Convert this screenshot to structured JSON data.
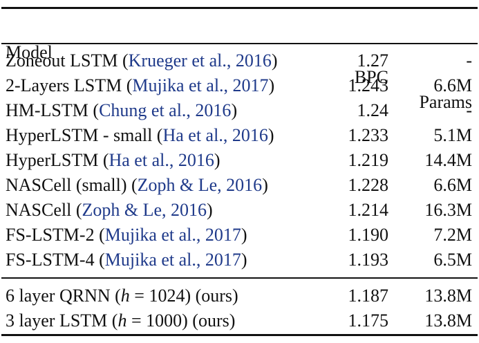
{
  "table": {
    "header": [
      "Model",
      "BPC",
      "Params"
    ],
    "groups": [
      [
        {
          "model": [
            {
              "text": "Zoneout LSTM ("
            },
            {
              "text": "Krueger et al., 2016",
              "style": "cite"
            },
            {
              "text": ")"
            }
          ],
          "bpc": "1.27",
          "params": "-"
        },
        {
          "model": [
            {
              "text": "2-Layers LSTM ("
            },
            {
              "text": "Mujika et al., 2017",
              "style": "cite"
            },
            {
              "text": ")"
            }
          ],
          "bpc": "1.243",
          "params": "6.6M"
        },
        {
          "model": [
            {
              "text": "HM-LSTM ("
            },
            {
              "text": "Chung et al., 2016",
              "style": "cite"
            },
            {
              "text": ")"
            }
          ],
          "bpc": "1.24",
          "params": "-"
        },
        {
          "model": [
            {
              "text": "HyperLSTM - small ("
            },
            {
              "text": "Ha et al., 2016",
              "style": "cite"
            },
            {
              "text": ")"
            }
          ],
          "bpc": "1.233",
          "params": "5.1M"
        },
        {
          "model": [
            {
              "text": "HyperLSTM ("
            },
            {
              "text": "Ha et al., 2016",
              "style": "cite"
            },
            {
              "text": ")"
            }
          ],
          "bpc": "1.219",
          "params": "14.4M"
        },
        {
          "model": [
            {
              "text": "NASCell (small) ("
            },
            {
              "text": "Zoph & Le, 2016",
              "style": "cite"
            },
            {
              "text": ")"
            }
          ],
          "bpc": "1.228",
          "params": "6.6M"
        },
        {
          "model": [
            {
              "text": "NASCell ("
            },
            {
              "text": "Zoph & Le, 2016",
              "style": "cite"
            },
            {
              "text": ")"
            }
          ],
          "bpc": "1.214",
          "params": "16.3M"
        },
        {
          "model": [
            {
              "text": "FS-LSTM-2 ("
            },
            {
              "text": "Mujika et al., 2017",
              "style": "cite"
            },
            {
              "text": ")"
            }
          ],
          "bpc": "1.190",
          "params": "7.2M"
        },
        {
          "model": [
            {
              "text": "FS-LSTM-4 ("
            },
            {
              "text": "Mujika et al., 2017",
              "style": "cite"
            },
            {
              "text": ")"
            }
          ],
          "bpc": "1.193",
          "params": "6.5M"
        }
      ],
      [
        {
          "model": [
            {
              "text": "6 layer QRNN ("
            },
            {
              "text": "h",
              "style": "math"
            },
            {
              "text": " = 1024) (ours)"
            }
          ],
          "bpc": "1.187",
          "params": "13.8M"
        },
        {
          "model": [
            {
              "text": "3 layer LSTM ("
            },
            {
              "text": "h",
              "style": "math"
            },
            {
              "text": " = 1000) (ours)"
            }
          ],
          "bpc": "1.175",
          "params": "13.8M"
        }
      ]
    ]
  }
}
